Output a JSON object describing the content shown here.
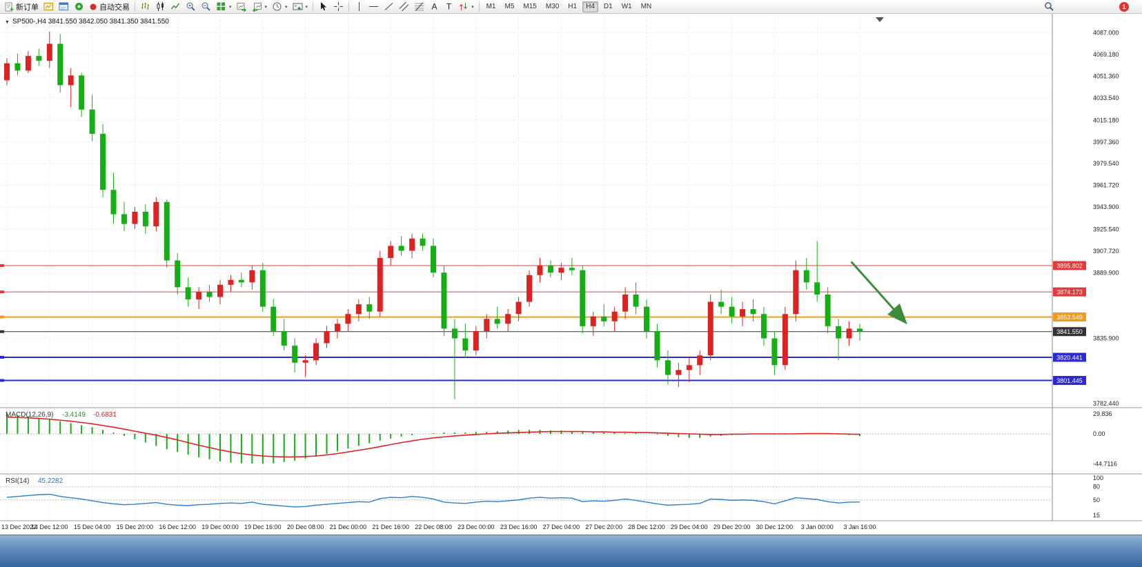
{
  "toolbar": {
    "new_order_label": "新订单",
    "auto_trading_label": "自动交易",
    "timeframes": [
      "M1",
      "M5",
      "M15",
      "M30",
      "H1",
      "H4",
      "D1",
      "W1",
      "MN"
    ],
    "active_timeframe": "H4",
    "notification_count": "1"
  },
  "chart": {
    "title": "SP500-,H4 3841.550 3842.050 3841.350 3841.550",
    "symbol": "SP500-",
    "period": "H4",
    "open": "3841.550",
    "high": "3842.050",
    "low": "3841.350",
    "close": "3841.550"
  },
  "colors": {
    "up_candle": "#dd2222",
    "down_candle": "#15af15",
    "resistance_line": "#e33b3b",
    "pivot_line": "#f29a1e",
    "support_line": "#2a2ad0",
    "current_price": "#333333",
    "macd_histogram": "#15af15",
    "macd_signal": "#dd2222",
    "rsi_line": "#2a7fd4",
    "arrow": "#3c8c3c",
    "bottom_bar": "#5f8abb"
  },
  "chart_data": {
    "type": "candlestick",
    "symbol": "SP500-",
    "timeframe": "H4",
    "up_color": "#dd2222",
    "down_color": "#15af15",
    "candles": [
      [
        4048,
        4066,
        4044,
        4062
      ],
      [
        4062,
        4070,
        4052,
        4056
      ],
      [
        4056,
        4072,
        4054,
        4068
      ],
      [
        4068,
        4074,
        4060,
        4064
      ],
      [
        4064,
        4088,
        4058,
        4078
      ],
      [
        4078,
        4086,
        4038,
        4044
      ],
      [
        4044,
        4058,
        4026,
        4052
      ],
      [
        4052,
        4054,
        4018,
        4024
      ],
      [
        4024,
        4036,
        3998,
        4004
      ],
      [
        4004,
        4012,
        3952,
        3958
      ],
      [
        3958,
        3972,
        3930,
        3938
      ],
      [
        3938,
        3948,
        3924,
        3930
      ],
      [
        3930,
        3944,
        3926,
        3940
      ],
      [
        3940,
        3946,
        3922,
        3928
      ],
      [
        3928,
        3952,
        3924,
        3948
      ],
      [
        3948,
        3950,
        3894,
        3900
      ],
      [
        3900,
        3906,
        3872,
        3878
      ],
      [
        3878,
        3886,
        3862,
        3868
      ],
      [
        3868,
        3878,
        3860,
        3874
      ],
      [
        3874,
        3880,
        3866,
        3870
      ],
      [
        3870,
        3884,
        3864,
        3880
      ],
      [
        3880,
        3888,
        3874,
        3884
      ],
      [
        3884,
        3890,
        3878,
        3882
      ],
      [
        3882,
        3896,
        3876,
        3892
      ],
      [
        3892,
        3898,
        3858,
        3862
      ],
      [
        3862,
        3868,
        3838,
        3842
      ],
      [
        3842,
        3852,
        3826,
        3830
      ],
      [
        3830,
        3836,
        3808,
        3816
      ],
      [
        3816,
        3822,
        3804,
        3818
      ],
      [
        3818,
        3836,
        3814,
        3832
      ],
      [
        3832,
        3846,
        3828,
        3842
      ],
      [
        3842,
        3852,
        3836,
        3848
      ],
      [
        3848,
        3860,
        3842,
        3856
      ],
      [
        3856,
        3868,
        3850,
        3864
      ],
      [
        3864,
        3870,
        3852,
        3858
      ],
      [
        3858,
        3908,
        3854,
        3902
      ],
      [
        3902,
        3916,
        3896,
        3912
      ],
      [
        3912,
        3920,
        3904,
        3908
      ],
      [
        3908,
        3922,
        3902,
        3918
      ],
      [
        3918,
        3922,
        3908,
        3912
      ],
      [
        3912,
        3918,
        3886,
        3890
      ],
      [
        3890,
        3896,
        3838,
        3844
      ],
      [
        3844,
        3852,
        3786,
        3836
      ],
      [
        3836,
        3848,
        3820,
        3826
      ],
      [
        3826,
        3846,
        3822,
        3842
      ],
      [
        3842,
        3856,
        3836,
        3852
      ],
      [
        3852,
        3862,
        3844,
        3848
      ],
      [
        3848,
        3860,
        3842,
        3856
      ],
      [
        3856,
        3870,
        3850,
        3866
      ],
      [
        3866,
        3892,
        3862,
        3888
      ],
      [
        3888,
        3902,
        3882,
        3896
      ],
      [
        3896,
        3900,
        3886,
        3890
      ],
      [
        3890,
        3898,
        3884,
        3894
      ],
      [
        3894,
        3902,
        3888,
        3892
      ],
      [
        3892,
        3896,
        3840,
        3846
      ],
      [
        3846,
        3858,
        3838,
        3854
      ],
      [
        3854,
        3864,
        3846,
        3850
      ],
      [
        3850,
        3862,
        3842,
        3858
      ],
      [
        3858,
        3878,
        3852,
        3872
      ],
      [
        3872,
        3882,
        3856,
        3862
      ],
      [
        3862,
        3868,
        3836,
        3842
      ],
      [
        3842,
        3848,
        3812,
        3818
      ],
      [
        3818,
        3826,
        3798,
        3806
      ],
      [
        3806,
        3816,
        3796,
        3810
      ],
      [
        3810,
        3820,
        3800,
        3814
      ],
      [
        3814,
        3826,
        3806,
        3822
      ],
      [
        3822,
        3872,
        3818,
        3866
      ],
      [
        3866,
        3876,
        3856,
        3862
      ],
      [
        3862,
        3870,
        3848,
        3854
      ],
      [
        3854,
        3866,
        3846,
        3860
      ],
      [
        3860,
        3868,
        3850,
        3856
      ],
      [
        3856,
        3862,
        3830,
        3836
      ],
      [
        3836,
        3842,
        3806,
        3814
      ],
      [
        3814,
        3862,
        3810,
        3856
      ],
      [
        3856,
        3900,
        3850,
        3892
      ],
      [
        3892,
        3902,
        3876,
        3882
      ],
      [
        3882,
        3916,
        3866,
        3872
      ],
      [
        3872,
        3878,
        3840,
        3846
      ],
      [
        3846,
        3852,
        3818,
        3836
      ],
      [
        3836,
        3850,
        3830,
        3844
      ],
      [
        3844,
        3848,
        3834,
        3841.55
      ]
    ],
    "x_axis_labels": [
      "13 Dec 2022",
      "14 Dec 12:00",
      "15 Dec 04:00",
      "15 Dec 20:00",
      "16 Dec 12:00",
      "19 Dec 00:00",
      "19 Dec 16:00",
      "20 Dec 08:00",
      "21 Dec 00:00",
      "21 Dec 16:00",
      "22 Dec 08:00",
      "23 Dec 00:00",
      "23 Dec 16:00",
      "27 Dec 04:00",
      "27 Dec 20:00",
      "28 Dec 12:00",
      "29 Dec 04:00",
      "29 Dec 20:00",
      "30 Dec 12:00",
      "3 Jan 00:00",
      "3 Jan 16:00"
    ],
    "y_axis": {
      "labels": [
        {
          "text": "4087.000",
          "value": 4087.0
        },
        {
          "text": "4069.180",
          "value": 4069.18
        },
        {
          "text": "4051.360",
          "value": 4051.36
        },
        {
          "text": "4033.540",
          "value": 4033.54
        },
        {
          "text": "4015.180",
          "value": 4015.18
        },
        {
          "text": "3997.360",
          "value": 3997.36
        },
        {
          "text": "3979.540",
          "value": 3979.54
        },
        {
          "text": "3961.720",
          "value": 3961.72
        },
        {
          "text": "3943.900",
          "value": 3943.9
        },
        {
          "text": "3925.540",
          "value": 3925.54
        },
        {
          "text": "3907.720",
          "value": 3907.72
        },
        {
          "text": "3889.900",
          "value": 3889.9
        },
        {
          "text": "3835.900",
          "value": 3835.9
        },
        {
          "text": "3782.440",
          "value": 3782.44
        }
      ]
    },
    "levels": [
      {
        "label": "3895.802",
        "value": 3895.802,
        "color": "#e33b3b",
        "width": 1
      },
      {
        "label": "3874.173",
        "value": 3874.173,
        "color": "#e33b3b",
        "width": 1
      },
      {
        "label": "3853.549",
        "value": 3853.549,
        "color": "#f29a1e",
        "width": 2
      },
      {
        "label": "3841.550",
        "value": 3841.55,
        "color": "#333333",
        "width": 1,
        "current": true
      },
      {
        "label": "3820.441",
        "value": 3820.441,
        "color": "#2a2ad0",
        "width": 2
      },
      {
        "label": "3801.445",
        "value": 3801.445,
        "color": "#2a2ad0",
        "width": 2
      }
    ],
    "annotations": [
      {
        "type": "arrow",
        "from_index": 79.2,
        "from_price": 3899,
        "to_index": 84.2,
        "to_price": 3850,
        "color": "#3c8c3c"
      }
    ],
    "indicators": {
      "macd": {
        "label": "MACD(12,26,9)",
        "value_main": "-3.4149",
        "value_signal": "-0.6831",
        "histogram_color": "#15af15",
        "signal_color": "#dd2222",
        "axis": [
          {
            "text": "29.836",
            "value": 29.836
          },
          {
            "text": "0.00",
            "value": 0
          },
          {
            "text": "-44.7116",
            "value": -44.7116
          }
        ],
        "histogram": [
          29.8,
          28,
          26,
          24,
          22,
          19,
          16,
          13,
          10,
          6,
          2,
          -3,
          -8,
          -13,
          -18,
          -23,
          -27,
          -31,
          -35,
          -38,
          -41,
          -43,
          -44,
          -44.5,
          -44.7,
          -44,
          -42,
          -40,
          -37,
          -34,
          -30,
          -26,
          -22,
          -18,
          -14,
          -10,
          -7,
          -4,
          -2,
          0,
          1,
          2,
          2,
          2,
          3,
          3,
          4,
          5,
          6,
          6,
          6,
          5,
          5,
          4,
          3,
          3,
          2,
          2,
          1,
          1,
          0,
          -1,
          -3,
          -5,
          -6,
          -6,
          -4,
          -3,
          -2,
          -1,
          0,
          0,
          -1,
          -1,
          0,
          1,
          1,
          0,
          -1,
          -2,
          -3.4
        ],
        "signal": [
          25,
          24.5,
          24,
          23,
          22,
          20.5,
          19,
          17,
          15,
          12.5,
          10,
          7,
          4,
          1,
          -2,
          -5.5,
          -9,
          -13,
          -17,
          -20.5,
          -24,
          -27,
          -29.5,
          -31.5,
          -33,
          -34,
          -34.5,
          -34.5,
          -34,
          -33,
          -31.5,
          -29.5,
          -27,
          -24.5,
          -22,
          -19,
          -16,
          -13,
          -10.5,
          -8,
          -6,
          -4.5,
          -3,
          -2,
          -1,
          0,
          1,
          1.5,
          2,
          2.5,
          3,
          3.5,
          3.5,
          3.5,
          3.5,
          3,
          3,
          2.5,
          2.5,
          2,
          2,
          1.5,
          1,
          0.5,
          0,
          -0.5,
          -1,
          -1,
          -0.5,
          -0.5,
          0,
          0,
          0,
          0,
          0,
          0.5,
          0.5,
          0.5,
          0,
          -0.3,
          -0.68
        ]
      },
      "rsi": {
        "label": "RSI(14)",
        "value": "45.2282",
        "color": "#2a7fd4",
        "axis": [
          {
            "text": "100",
            "value": 100
          },
          {
            "text": "80",
            "value": 80
          },
          {
            "text": "50",
            "value": 50
          },
          {
            "text": "15",
            "value": 15
          }
        ],
        "dashed_levels": [
          80,
          50
        ],
        "values": [
          56,
          58,
          60,
          62,
          63,
          58,
          55,
          52,
          48,
          44,
          41,
          39,
          40,
          42,
          44,
          40,
          38,
          37,
          39,
          40,
          42,
          43,
          42,
          45,
          40,
          38,
          36,
          34,
          35,
          38,
          40,
          42,
          44,
          46,
          45,
          53,
          56,
          55,
          58,
          56,
          52,
          45,
          43,
          42,
          45,
          47,
          46,
          48,
          50,
          54,
          56,
          54,
          55,
          54,
          46,
          48,
          47,
          49,
          52,
          49,
          45,
          41,
          38,
          39,
          40,
          42,
          52,
          51,
          49,
          50,
          49,
          46,
          41,
          48,
          55,
          53,
          51,
          46,
          43,
          45,
          45.23
        ]
      }
    }
  }
}
